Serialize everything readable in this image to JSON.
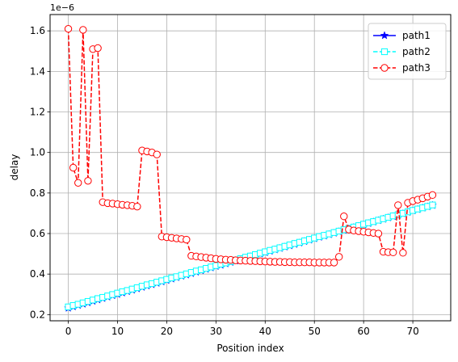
{
  "chart_data": {
    "type": "line",
    "title": "",
    "xlabel": "Position index",
    "ylabel": "delay",
    "offset_label": "1e−6",
    "scale_exponent": -6,
    "xlim": [
      -3.7,
      77.7
    ],
    "ylim": [
      0.1695,
      1.6805
    ],
    "x_ticks": [
      0,
      10,
      20,
      30,
      40,
      50,
      60,
      70
    ],
    "y_ticks": [
      0.2,
      0.4,
      0.6,
      0.8,
      1.0,
      1.2,
      1.4,
      1.6
    ],
    "y_tick_labels": [
      "0.2",
      "0.4",
      "0.6",
      "0.8",
      "1.0",
      "1.2",
      "1.4",
      "1.6"
    ],
    "grid": true,
    "legend_position": "upper right",
    "series": [
      {
        "name": "path1",
        "color": "#0000ff",
        "line_style": "solid",
        "marker": "star",
        "y": [
          0.232,
          0.239,
          0.246,
          0.252,
          0.259,
          0.266,
          0.273,
          0.28,
          0.287,
          0.294,
          0.3,
          0.307,
          0.314,
          0.321,
          0.328,
          0.335,
          0.342,
          0.348,
          0.355,
          0.362,
          0.369,
          0.376,
          0.383,
          0.39,
          0.396,
          0.403,
          0.41,
          0.417,
          0.424,
          0.431,
          0.438,
          0.444,
          0.451,
          0.458,
          0.465,
          0.472,
          0.479,
          0.486,
          0.492,
          0.499,
          0.506,
          0.513,
          0.52,
          0.527,
          0.534,
          0.54,
          0.547,
          0.554,
          0.561,
          0.568,
          0.575,
          0.582,
          0.588,
          0.595,
          0.602,
          0.609,
          0.616,
          0.623,
          0.63,
          0.636,
          0.643,
          0.65,
          0.657,
          0.664,
          0.671,
          0.678,
          0.684,
          0.691,
          0.698,
          0.705,
          0.712,
          0.719,
          0.726,
          0.732,
          0.739
        ]
      },
      {
        "name": "path2",
        "color": "#00ffff",
        "line_style": "dashed",
        "marker": "square",
        "y": [
          0.238,
          0.245,
          0.251,
          0.258,
          0.265,
          0.272,
          0.279,
          0.285,
          0.292,
          0.299,
          0.306,
          0.313,
          0.319,
          0.326,
          0.333,
          0.34,
          0.347,
          0.353,
          0.36,
          0.367,
          0.374,
          0.381,
          0.387,
          0.394,
          0.401,
          0.408,
          0.415,
          0.421,
          0.428,
          0.435,
          0.442,
          0.449,
          0.455,
          0.462,
          0.469,
          0.476,
          0.483,
          0.489,
          0.496,
          0.503,
          0.51,
          0.517,
          0.523,
          0.53,
          0.537,
          0.544,
          0.551,
          0.557,
          0.564,
          0.571,
          0.578,
          0.585,
          0.591,
          0.598,
          0.605,
          0.612,
          0.619,
          0.625,
          0.632,
          0.639,
          0.646,
          0.653,
          0.659,
          0.666,
          0.673,
          0.68,
          0.687,
          0.693,
          0.7,
          0.707,
          0.714,
          0.721,
          0.727,
          0.734,
          0.741
        ]
      },
      {
        "name": "path3",
        "color": "#ff0000",
        "line_style": "dashed",
        "marker": "circle",
        "y": [
          1.61,
          0.925,
          0.85,
          1.605,
          0.86,
          1.51,
          1.515,
          0.755,
          0.75,
          0.748,
          0.745,
          0.742,
          0.74,
          0.737,
          0.733,
          1.01,
          1.005,
          1.0,
          0.99,
          0.585,
          0.582,
          0.579,
          0.576,
          0.573,
          0.57,
          0.49,
          0.487,
          0.484,
          0.481,
          0.478,
          0.475,
          0.473,
          0.471,
          0.47,
          0.468,
          0.467,
          0.466,
          0.465,
          0.464,
          0.463,
          0.462,
          0.461,
          0.46,
          0.46,
          0.459,
          0.459,
          0.458,
          0.458,
          0.458,
          0.458,
          0.457,
          0.457,
          0.457,
          0.457,
          0.457,
          0.485,
          0.685,
          0.62,
          0.615,
          0.612,
          0.609,
          0.606,
          0.603,
          0.6,
          0.51,
          0.508,
          0.507,
          0.74,
          0.505,
          0.752,
          0.76,
          0.767,
          0.774,
          0.782,
          0.79
        ]
      }
    ]
  }
}
